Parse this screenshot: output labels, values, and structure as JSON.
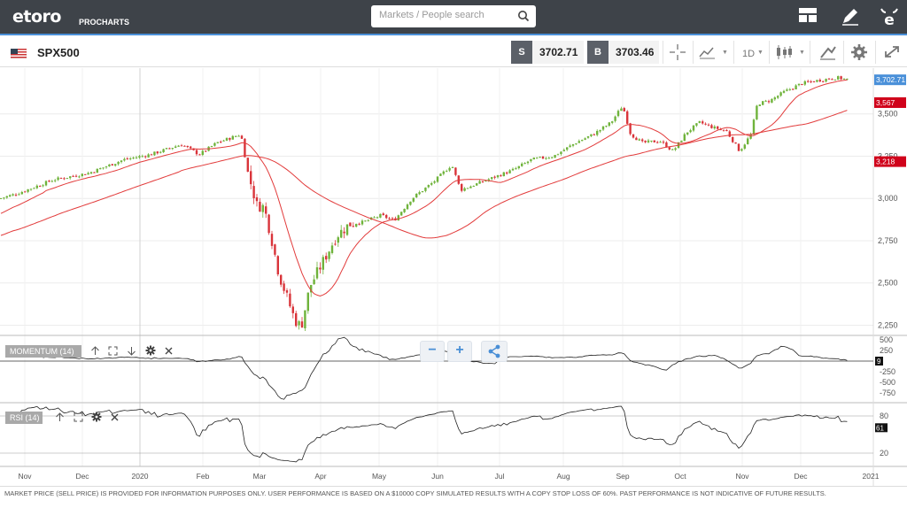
{
  "header": {
    "logo": "etoro",
    "logo_sub": "PROCHARTS",
    "search_placeholder": "Markets / People search"
  },
  "toolbar": {
    "symbol": "SPX500",
    "sell_label": "S",
    "sell_price": "3702.71",
    "buy_label": "B",
    "buy_price": "3703.46",
    "timeframe": "1D"
  },
  "chart": {
    "price_axis": [
      "3,500",
      "3,250",
      "3,000",
      "2,750",
      "2,500",
      "2,250"
    ],
    "last_price_tag": "3,702.71",
    "ma1_tag": "3,567",
    "ma2_tag": "3,218",
    "months": [
      "Nov",
      "Dec",
      "2020",
      "Feb",
      "Mar",
      "Apr",
      "May",
      "Jun",
      "Jul",
      "Aug",
      "Sep",
      "Oct",
      "Nov",
      "Dec",
      "2021"
    ],
    "momentum_label": "MOMENTUM (14)",
    "momentum_axis": [
      "500",
      "250",
      "-250",
      "-500",
      "-750"
    ],
    "momentum_value": "9",
    "rsi_label": "RSI (14)",
    "rsi_axis": [
      "80",
      "20"
    ],
    "rsi_value": "61",
    "colors": {
      "up": "#6fb33b",
      "down": "#d9343a",
      "ma": "#e23b3b",
      "price_tag": "#4a90d9"
    }
  },
  "footer": {
    "disclaimer": "MARKET PRICE (SELL PRICE) IS PROVIDED FOR INFORMATION PURPOSES ONLY. USER PERFORMANCE IS BASED ON A $10000 COPY SIMULATED RESULTS WITH A COPY STOP LOSS OF 60%. PAST PERFORMANCE IS NOT INDICATIVE OF FUTURE RESULTS."
  }
}
